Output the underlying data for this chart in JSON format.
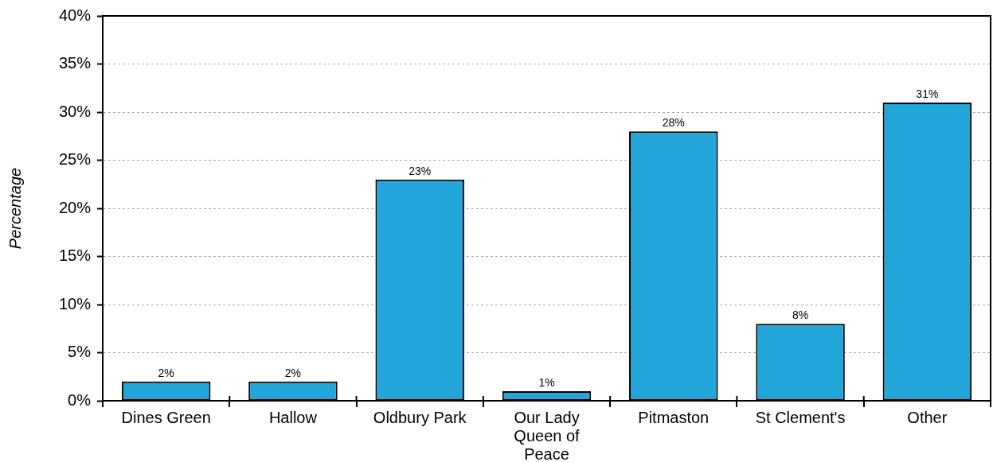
{
  "chart_data": {
    "type": "bar",
    "ylabel": "Percentage",
    "categories": [
      "Dines Green",
      "Hallow",
      "Oldbury Park",
      "Our Lady Queen of Peace",
      "Pitmaston",
      "St Clement's",
      "Other"
    ],
    "values": [
      2,
      2,
      23,
      1,
      28,
      8,
      31
    ],
    "value_labels": [
      "2%",
      "2%",
      "23%",
      "1%",
      "28%",
      "8%",
      "31%"
    ],
    "color": "#22a5d8",
    "ylim": [
      0,
      40
    ],
    "yticks": [
      {
        "value": 0,
        "label": "0%"
      },
      {
        "value": 5,
        "label": "5%"
      },
      {
        "value": 10,
        "label": "10%"
      },
      {
        "value": 15,
        "label": "15%"
      },
      {
        "value": 20,
        "label": "20%"
      },
      {
        "value": 25,
        "label": "25%"
      },
      {
        "value": 30,
        "label": "30%"
      },
      {
        "value": 35,
        "label": "35%"
      },
      {
        "value": 40,
        "label": "40%"
      }
    ],
    "grid": "y"
  }
}
